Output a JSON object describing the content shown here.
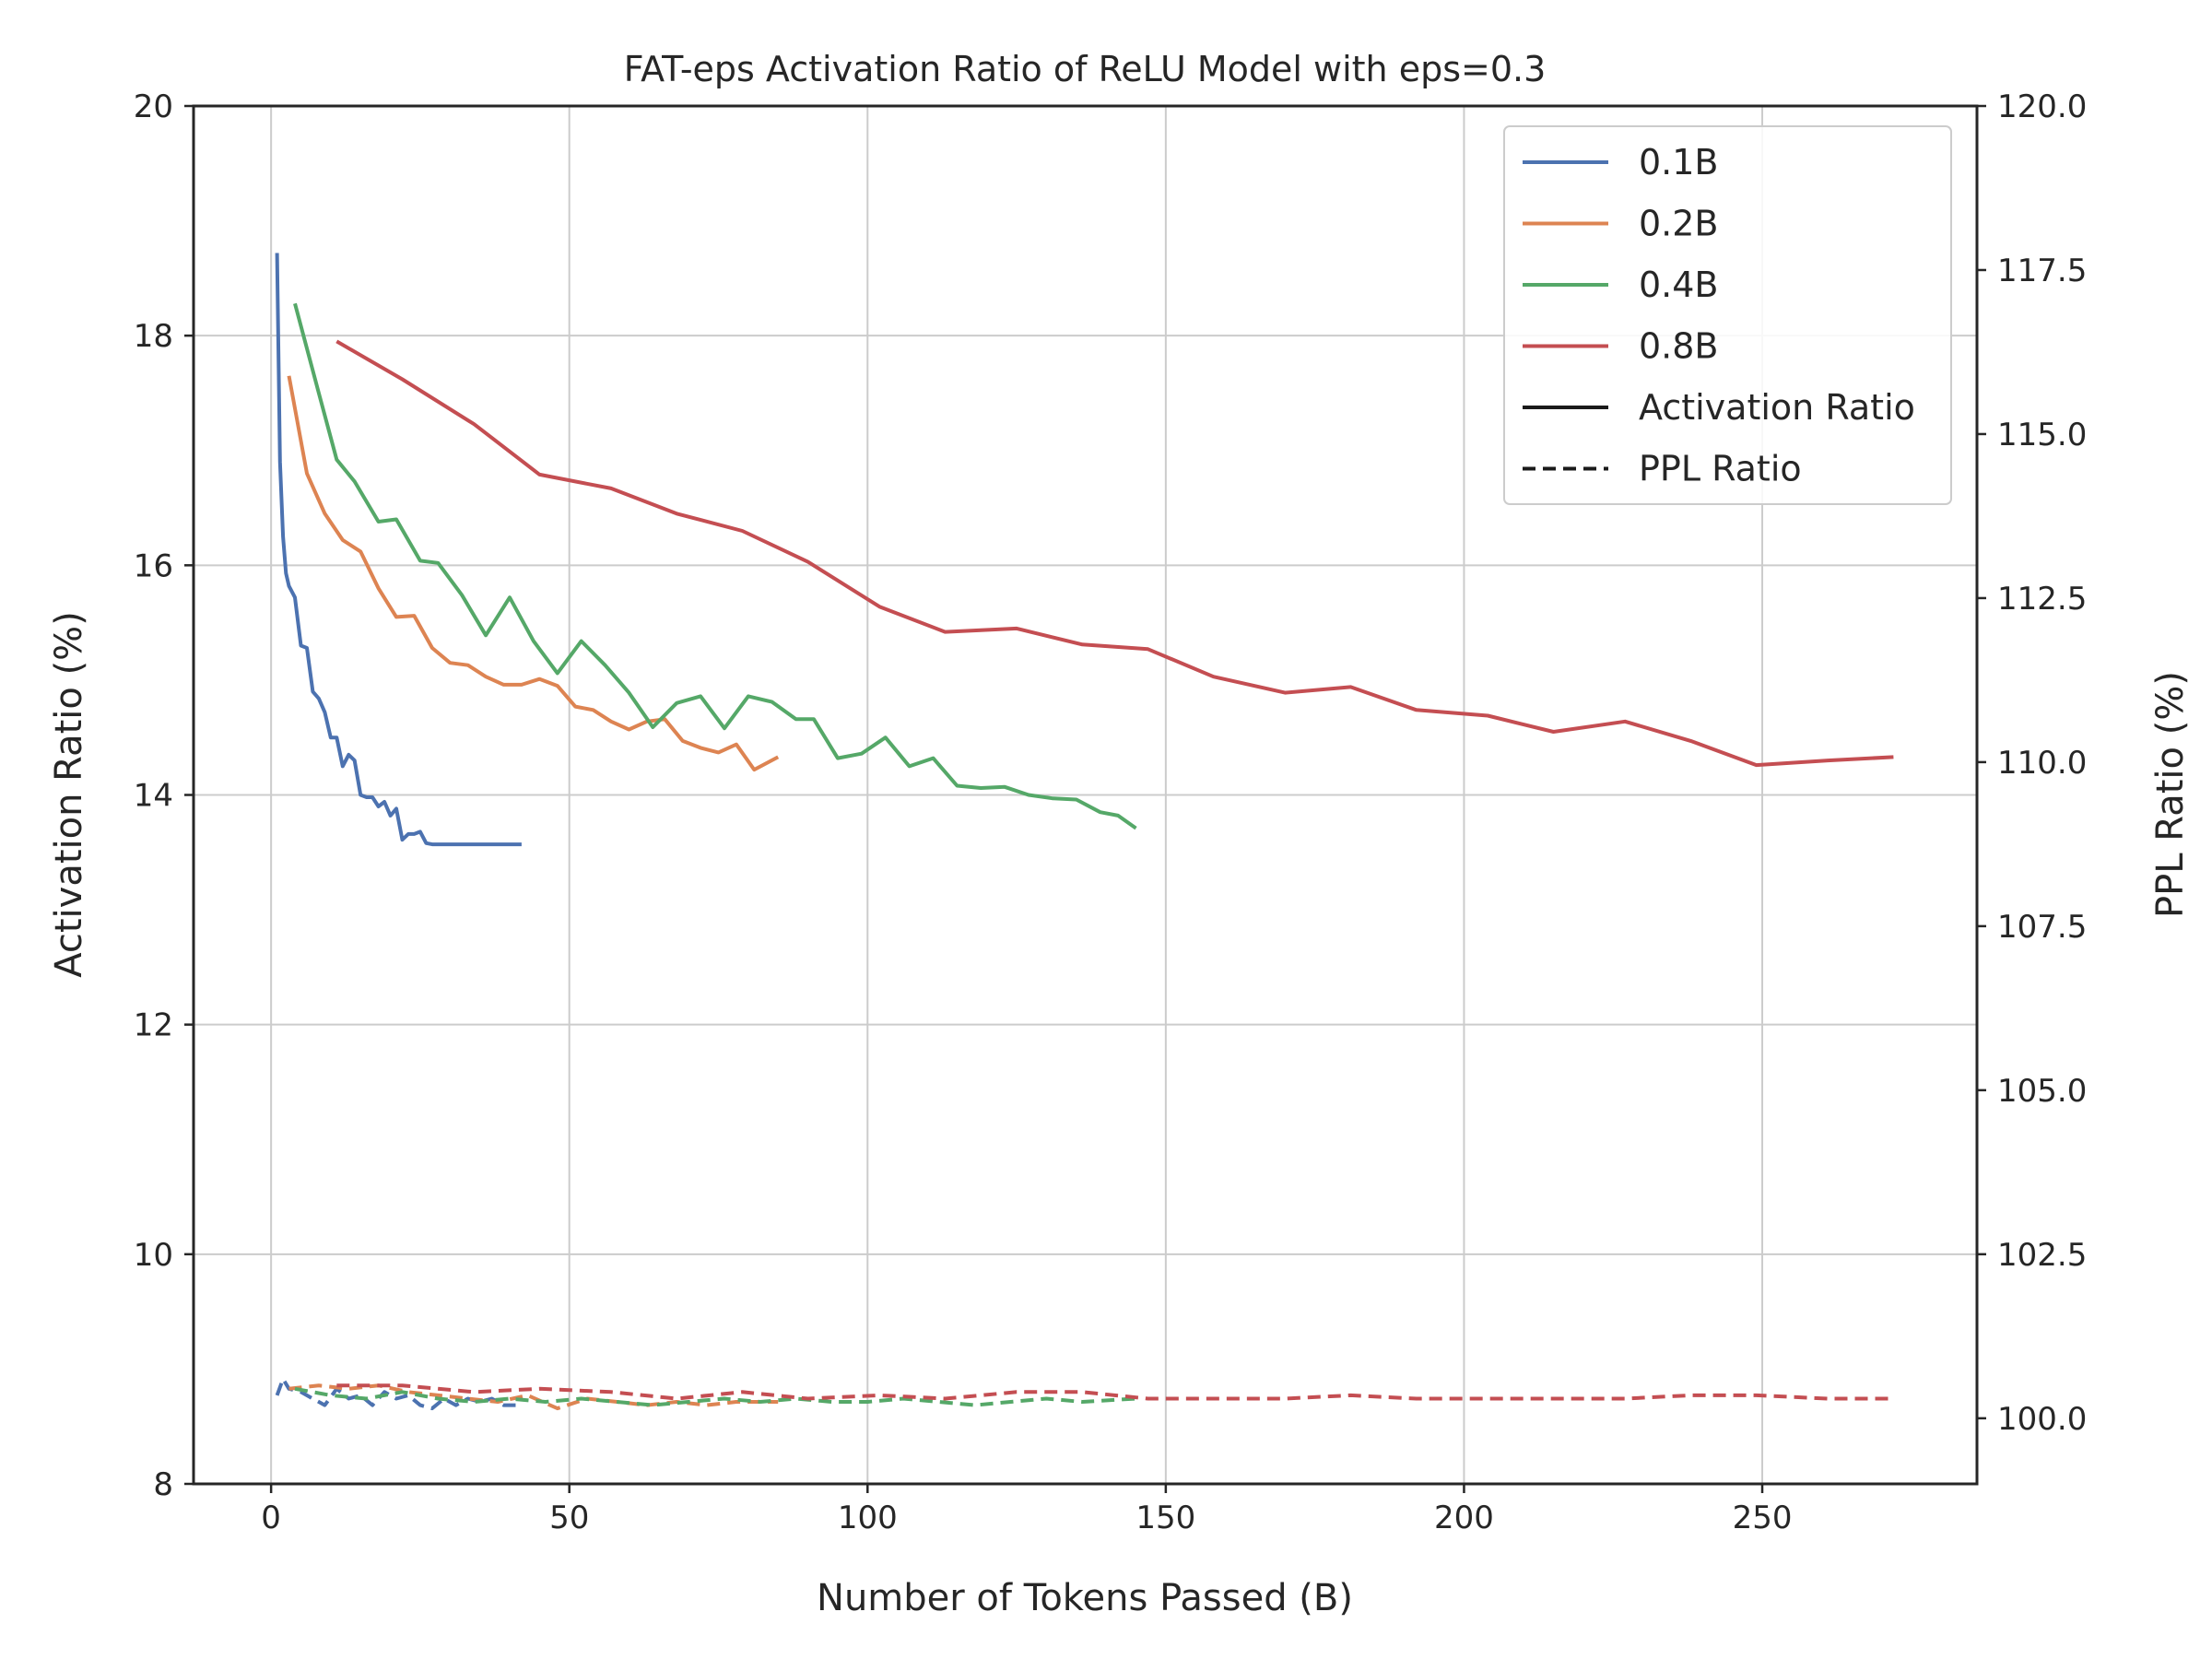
{
  "chart_data": {
    "type": "line",
    "title": "FAT-eps Activation Ratio of ReLU Model with eps=0.3",
    "xlabel": "Number of Tokens Passed (B)",
    "ylabel": "Activation Ratio (%)",
    "y2label": "PPL Ratio (%)",
    "xlim": [
      -13,
      286
    ],
    "ylim": [
      8,
      20
    ],
    "y2lim": [
      99.0,
      120.0
    ],
    "xticks": [
      0,
      50,
      100,
      150,
      200,
      250
    ],
    "yticks": [
      8,
      10,
      12,
      14,
      16,
      18,
      20
    ],
    "y2ticks": [
      100.0,
      102.5,
      105.0,
      107.5,
      110.0,
      112.5,
      115.0,
      117.5,
      120.0
    ],
    "grid": true,
    "legend_position": "top-right",
    "colors": {
      "0.1B": "#4c72b0",
      "0.2B": "#dd8452",
      "0.4B": "#55a868",
      "0.8B": "#c44e52"
    },
    "legend": [
      {
        "label": "0.1B",
        "color": "#4c72b0",
        "style": "solid"
      },
      {
        "label": "0.2B",
        "color": "#dd8452",
        "style": "solid"
      },
      {
        "label": "0.4B",
        "color": "#55a868",
        "style": "solid"
      },
      {
        "label": "0.8B",
        "color": "#c44e52",
        "style": "solid"
      },
      {
        "label": "Activation Ratio",
        "color": "#1a1a1a",
        "style": "solid"
      },
      {
        "label": "PPL Ratio",
        "color": "#1a1a1a",
        "style": "dashed"
      }
    ],
    "series": [
      {
        "name": "0.1B",
        "metric": "Activation Ratio",
        "axis": "left",
        "x": [
          1,
          1.5,
          2,
          2.5,
          3,
          4,
          5,
          6,
          7,
          8,
          9,
          10,
          11,
          12,
          13,
          14,
          15,
          16,
          17,
          18,
          19,
          20,
          21,
          22,
          23,
          24,
          25,
          26,
          27,
          28,
          29,
          30,
          31,
          32,
          33,
          34,
          35,
          36,
          37,
          38,
          39,
          40,
          41,
          42
        ],
        "y": [
          18.72,
          16.9,
          16.25,
          15.93,
          15.82,
          15.72,
          15.3,
          15.28,
          14.9,
          14.84,
          14.72,
          14.5,
          14.5,
          14.25,
          14.35,
          14.3,
          14.0,
          13.98,
          13.98,
          13.9,
          13.94,
          13.82,
          13.88,
          13.61,
          13.66,
          13.66,
          13.68,
          13.58,
          13.57,
          13.57,
          13.57,
          13.57,
          13.57,
          13.57,
          13.57,
          13.57,
          13.57,
          13.57,
          13.57,
          13.57,
          13.57,
          13.57,
          13.57,
          13.57
        ]
      },
      {
        "name": "0.1B",
        "metric": "PPL Ratio",
        "axis": "right",
        "x": [
          1,
          2,
          3,
          5,
          7,
          9,
          11,
          13,
          15,
          17,
          19,
          21,
          23,
          25,
          27,
          29,
          31,
          33,
          35,
          37,
          39,
          42
        ],
        "y": [
          100.35,
          100.6,
          100.45,
          100.4,
          100.3,
          100.2,
          100.45,
          100.3,
          100.35,
          100.2,
          100.4,
          100.3,
          100.35,
          100.2,
          100.15,
          100.3,
          100.2,
          100.3,
          100.25,
          100.3,
          100.2,
          100.2
        ]
      },
      {
        "name": "0.2B",
        "metric": "Activation Ratio",
        "axis": "left",
        "x": [
          3,
          6,
          9,
          12,
          15,
          18,
          21,
          24,
          27,
          30,
          33,
          36,
          39,
          42,
          45,
          48,
          51,
          54,
          57,
          60,
          63,
          66,
          69,
          72,
          75,
          78,
          81,
          85
        ],
        "y": [
          17.65,
          16.8,
          16.45,
          16.22,
          16.12,
          15.8,
          15.55,
          15.56,
          15.28,
          15.15,
          15.13,
          15.03,
          14.96,
          14.96,
          15.01,
          14.95,
          14.77,
          14.74,
          14.64,
          14.57,
          14.64,
          14.66,
          14.47,
          14.41,
          14.37,
          14.44,
          14.22,
          14.33
        ]
      },
      {
        "name": "0.2B",
        "metric": "PPL Ratio",
        "axis": "right",
        "x": [
          3,
          8,
          13,
          18,
          23,
          28,
          33,
          38,
          43,
          48,
          53,
          58,
          63,
          68,
          73,
          78,
          85
        ],
        "y": [
          100.45,
          100.5,
          100.45,
          100.5,
          100.4,
          100.35,
          100.3,
          100.25,
          100.35,
          100.15,
          100.3,
          100.25,
          100.2,
          100.25,
          100.2,
          100.25,
          100.25
        ]
      },
      {
        "name": "0.4B",
        "metric": "Activation Ratio",
        "axis": "left",
        "x": [
          4,
          8,
          11,
          14,
          18,
          21,
          25,
          28,
          32,
          36,
          40,
          44,
          48,
          52,
          56,
          60,
          64,
          68,
          72,
          76,
          80,
          84,
          88,
          91,
          95,
          99,
          103,
          107,
          111,
          115,
          119,
          123,
          127,
          131,
          135,
          139,
          142,
          145
        ],
        "y": [
          18.28,
          17.5,
          16.92,
          16.73,
          16.38,
          16.4,
          16.04,
          16.02,
          15.74,
          15.39,
          15.72,
          15.34,
          15.06,
          15.34,
          15.13,
          14.89,
          14.59,
          14.8,
          14.86,
          14.58,
          14.86,
          14.81,
          14.66,
          14.66,
          14.32,
          14.36,
          14.5,
          14.25,
          14.32,
          14.08,
          14.06,
          14.07,
          14.0,
          13.97,
          13.96,
          13.85,
          13.82,
          13.71
        ]
      },
      {
        "name": "0.4B",
        "metric": "PPL Ratio",
        "axis": "right",
        "x": [
          4,
          10,
          16,
          22,
          28,
          34,
          40,
          46,
          52,
          58,
          64,
          70,
          76,
          82,
          88,
          94,
          100,
          106,
          112,
          118,
          124,
          130,
          136,
          145
        ],
        "y": [
          100.45,
          100.35,
          100.3,
          100.4,
          100.3,
          100.25,
          100.3,
          100.25,
          100.3,
          100.25,
          100.2,
          100.25,
          100.3,
          100.25,
          100.3,
          100.25,
          100.25,
          100.3,
          100.25,
          100.2,
          100.25,
          100.3,
          100.25,
          100.3
        ]
      },
      {
        "name": "0.8B",
        "metric": "Activation Ratio",
        "axis": "left",
        "x": [
          11,
          22,
          34,
          45,
          57,
          68,
          79,
          90,
          102,
          113,
          125,
          136,
          147,
          158,
          170,
          181,
          192,
          204,
          215,
          227,
          238,
          249,
          261,
          272
        ],
        "y": [
          17.95,
          17.62,
          17.23,
          16.79,
          16.67,
          16.45,
          16.3,
          16.03,
          15.64,
          15.42,
          15.45,
          15.31,
          15.27,
          15.03,
          14.89,
          14.94,
          14.74,
          14.69,
          14.55,
          14.64,
          14.47,
          14.26,
          14.3,
          14.33
        ]
      },
      {
        "name": "0.8B",
        "metric": "PPL Ratio",
        "axis": "right",
        "x": [
          11,
          22,
          34,
          45,
          57,
          68,
          79,
          90,
          102,
          113,
          125,
          136,
          147,
          158,
          170,
          181,
          192,
          204,
          215,
          227,
          238,
          249,
          261,
          272
        ],
        "y": [
          100.5,
          100.5,
          100.4,
          100.45,
          100.4,
          100.3,
          100.4,
          100.3,
          100.35,
          100.3,
          100.4,
          100.4,
          100.3,
          100.3,
          100.3,
          100.35,
          100.3,
          100.3,
          100.3,
          100.3,
          100.35,
          100.35,
          100.3,
          100.3
        ]
      }
    ]
  }
}
